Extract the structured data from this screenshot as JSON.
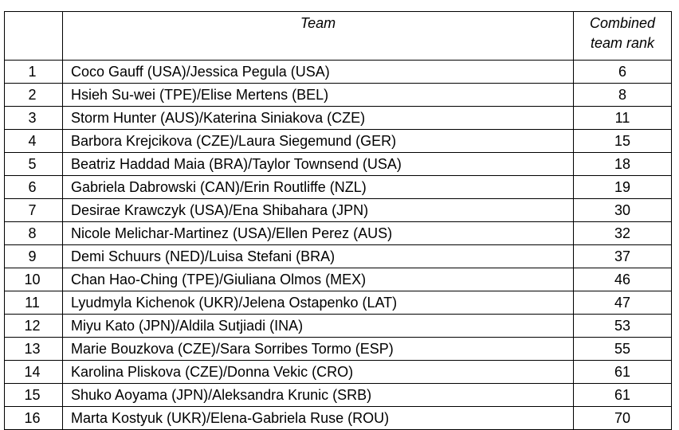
{
  "table": {
    "headers": {
      "rank": "",
      "team": "Team",
      "combined_line1": "Combined",
      "combined_line2": "team rank"
    },
    "rows": [
      {
        "rank": "1",
        "team": "Coco Gauff (USA)/Jessica Pegula (USA)",
        "combined": "6"
      },
      {
        "rank": "2",
        "team": "Hsieh Su-wei (TPE)/Elise Mertens (BEL)",
        "combined": "8"
      },
      {
        "rank": "3",
        "team": "Storm Hunter (AUS)/Katerina Siniakova (CZE)",
        "combined": "11"
      },
      {
        "rank": "4",
        "team": "Barbora Krejcikova (CZE)/Laura Siegemund (GER)",
        "combined": "15"
      },
      {
        "rank": "5",
        "team": "Beatriz Haddad Maia (BRA)/Taylor Townsend (USA)",
        "combined": "18"
      },
      {
        "rank": "6",
        "team": "Gabriela Dabrowski (CAN)/Erin Routliffe (NZL)",
        "combined": "19"
      },
      {
        "rank": "7",
        "team": "Desirae Krawczyk (USA)/Ena Shibahara (JPN)",
        "combined": "30"
      },
      {
        "rank": "8",
        "team": "Nicole Melichar-Martinez (USA)/Ellen Perez (AUS)",
        "combined": "32"
      },
      {
        "rank": "9",
        "team": "Demi Schuurs (NED)/Luisa Stefani (BRA)",
        "combined": "37"
      },
      {
        "rank": "10",
        "team": "Chan Hao-Ching (TPE)/Giuliana Olmos (MEX)",
        "combined": "46"
      },
      {
        "rank": "11",
        "team": "Lyudmyla Kichenok (UKR)/Jelena Ostapenko (LAT)",
        "combined": "47"
      },
      {
        "rank": "12",
        "team": "Miyu Kato (JPN)/Aldila Sutjiadi (INA)",
        "combined": "53"
      },
      {
        "rank": "13",
        "team": "Marie Bouzkova (CZE)/Sara Sorribes Tormo (ESP)",
        "combined": "55"
      },
      {
        "rank": "14",
        "team": "Karolina Pliskova (CZE)/Donna Vekic (CRO)",
        "combined": "61"
      },
      {
        "rank": "15",
        "team": "Shuko Aoyama (JPN)/Aleksandra Krunic (SRB)",
        "combined": "61"
      },
      {
        "rank": "16",
        "team": "Marta Kostyuk (UKR)/Elena-Gabriela Ruse (ROU)",
        "combined": "70"
      }
    ]
  }
}
